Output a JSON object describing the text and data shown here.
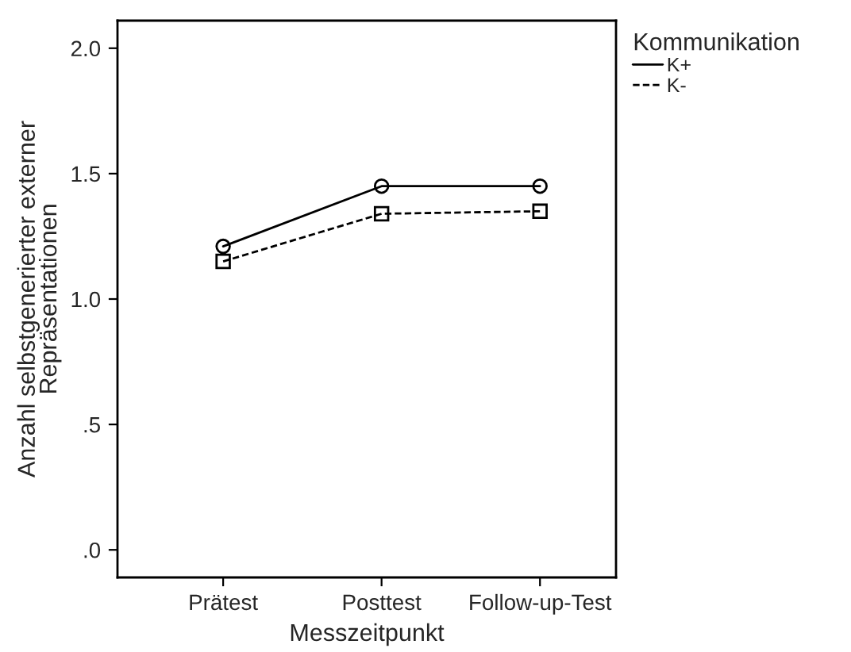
{
  "chart_data": {
    "type": "line",
    "xlabel": "Messzeitpunkt",
    "ylabel": "Anzahl selbstgenerierter externer\nRepräsentationen",
    "legend_title": "Kommunikation",
    "categories": [
      "Prätest",
      "Posttest",
      "Follow-up-Test"
    ],
    "series": [
      {
        "name": "K+",
        "color": "#000000",
        "values": [
          1.21,
          1.45,
          1.45
        ],
        "marker": "circle",
        "line_style": "solid"
      },
      {
        "name": "K-",
        "color": "#000000",
        "values": [
          1.15,
          1.34,
          1.35
        ],
        "marker": "square",
        "line_style": "dashed"
      }
    ],
    "ylim": [
      -0.11,
      2.11
    ],
    "yticks": [
      {
        "value": 0,
        "label": ".0"
      },
      {
        "value": 0.5,
        "label": ".5"
      },
      {
        "value": 1.0,
        "label": "1.0"
      },
      {
        "value": 1.5,
        "label": "1.5"
      },
      {
        "value": 2.0,
        "label": "2.0"
      }
    ],
    "grid": false,
    "legend": "top right"
  }
}
